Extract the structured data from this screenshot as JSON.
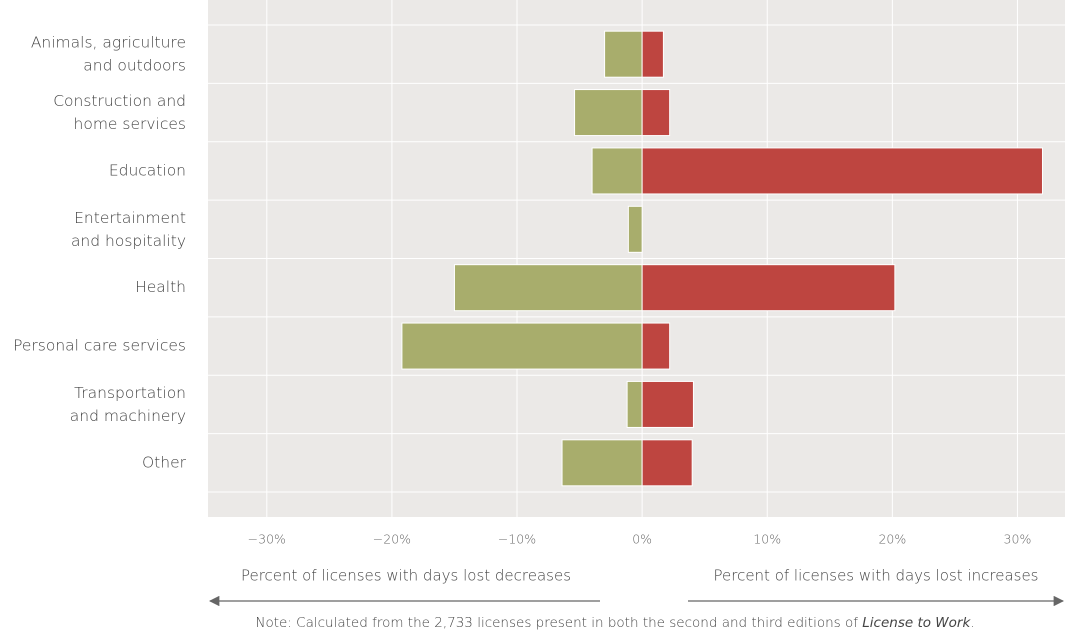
{
  "chart_data": {
    "type": "bar",
    "orientation": "horizontal",
    "categories": [
      "Animals, agriculture\nand outdoors",
      "Construction and\nhome services",
      "Education",
      "Entertainment\nand hospitality",
      "Health",
      "Personal care services",
      "Transportation\nand machinery",
      "Other"
    ],
    "series": [
      {
        "name": "Percent of licenses with days lost decreases",
        "color": "#a8ad6c",
        "values": [
          -3.0,
          -5.4,
          -4.0,
          -1.1,
          -15.0,
          -19.2,
          -1.2,
          -6.4
        ]
      },
      {
        "name": "Percent of licenses with days lost increases",
        "color": "#be4540",
        "values": [
          1.7,
          2.2,
          32.0,
          0,
          20.2,
          2.2,
          4.1,
          4.0
        ]
      }
    ],
    "xlim": [
      -34.7,
      33.8
    ],
    "xticks": [
      {
        "value": -30,
        "label": "−30%"
      },
      {
        "value": -20,
        "label": "−20%"
      },
      {
        "value": -10,
        "label": "−10%"
      },
      {
        "value": 0,
        "label": "0%"
      },
      {
        "value": 10,
        "label": "10%"
      },
      {
        "value": 20,
        "label": "20%"
      },
      {
        "value": 30,
        "label": "30%"
      }
    ],
    "grid": true,
    "note": {
      "text": "Note: Calculated from the 2,733 licenses present in both the second and third editions of ",
      "italic": "License to Work",
      "end": "."
    }
  }
}
